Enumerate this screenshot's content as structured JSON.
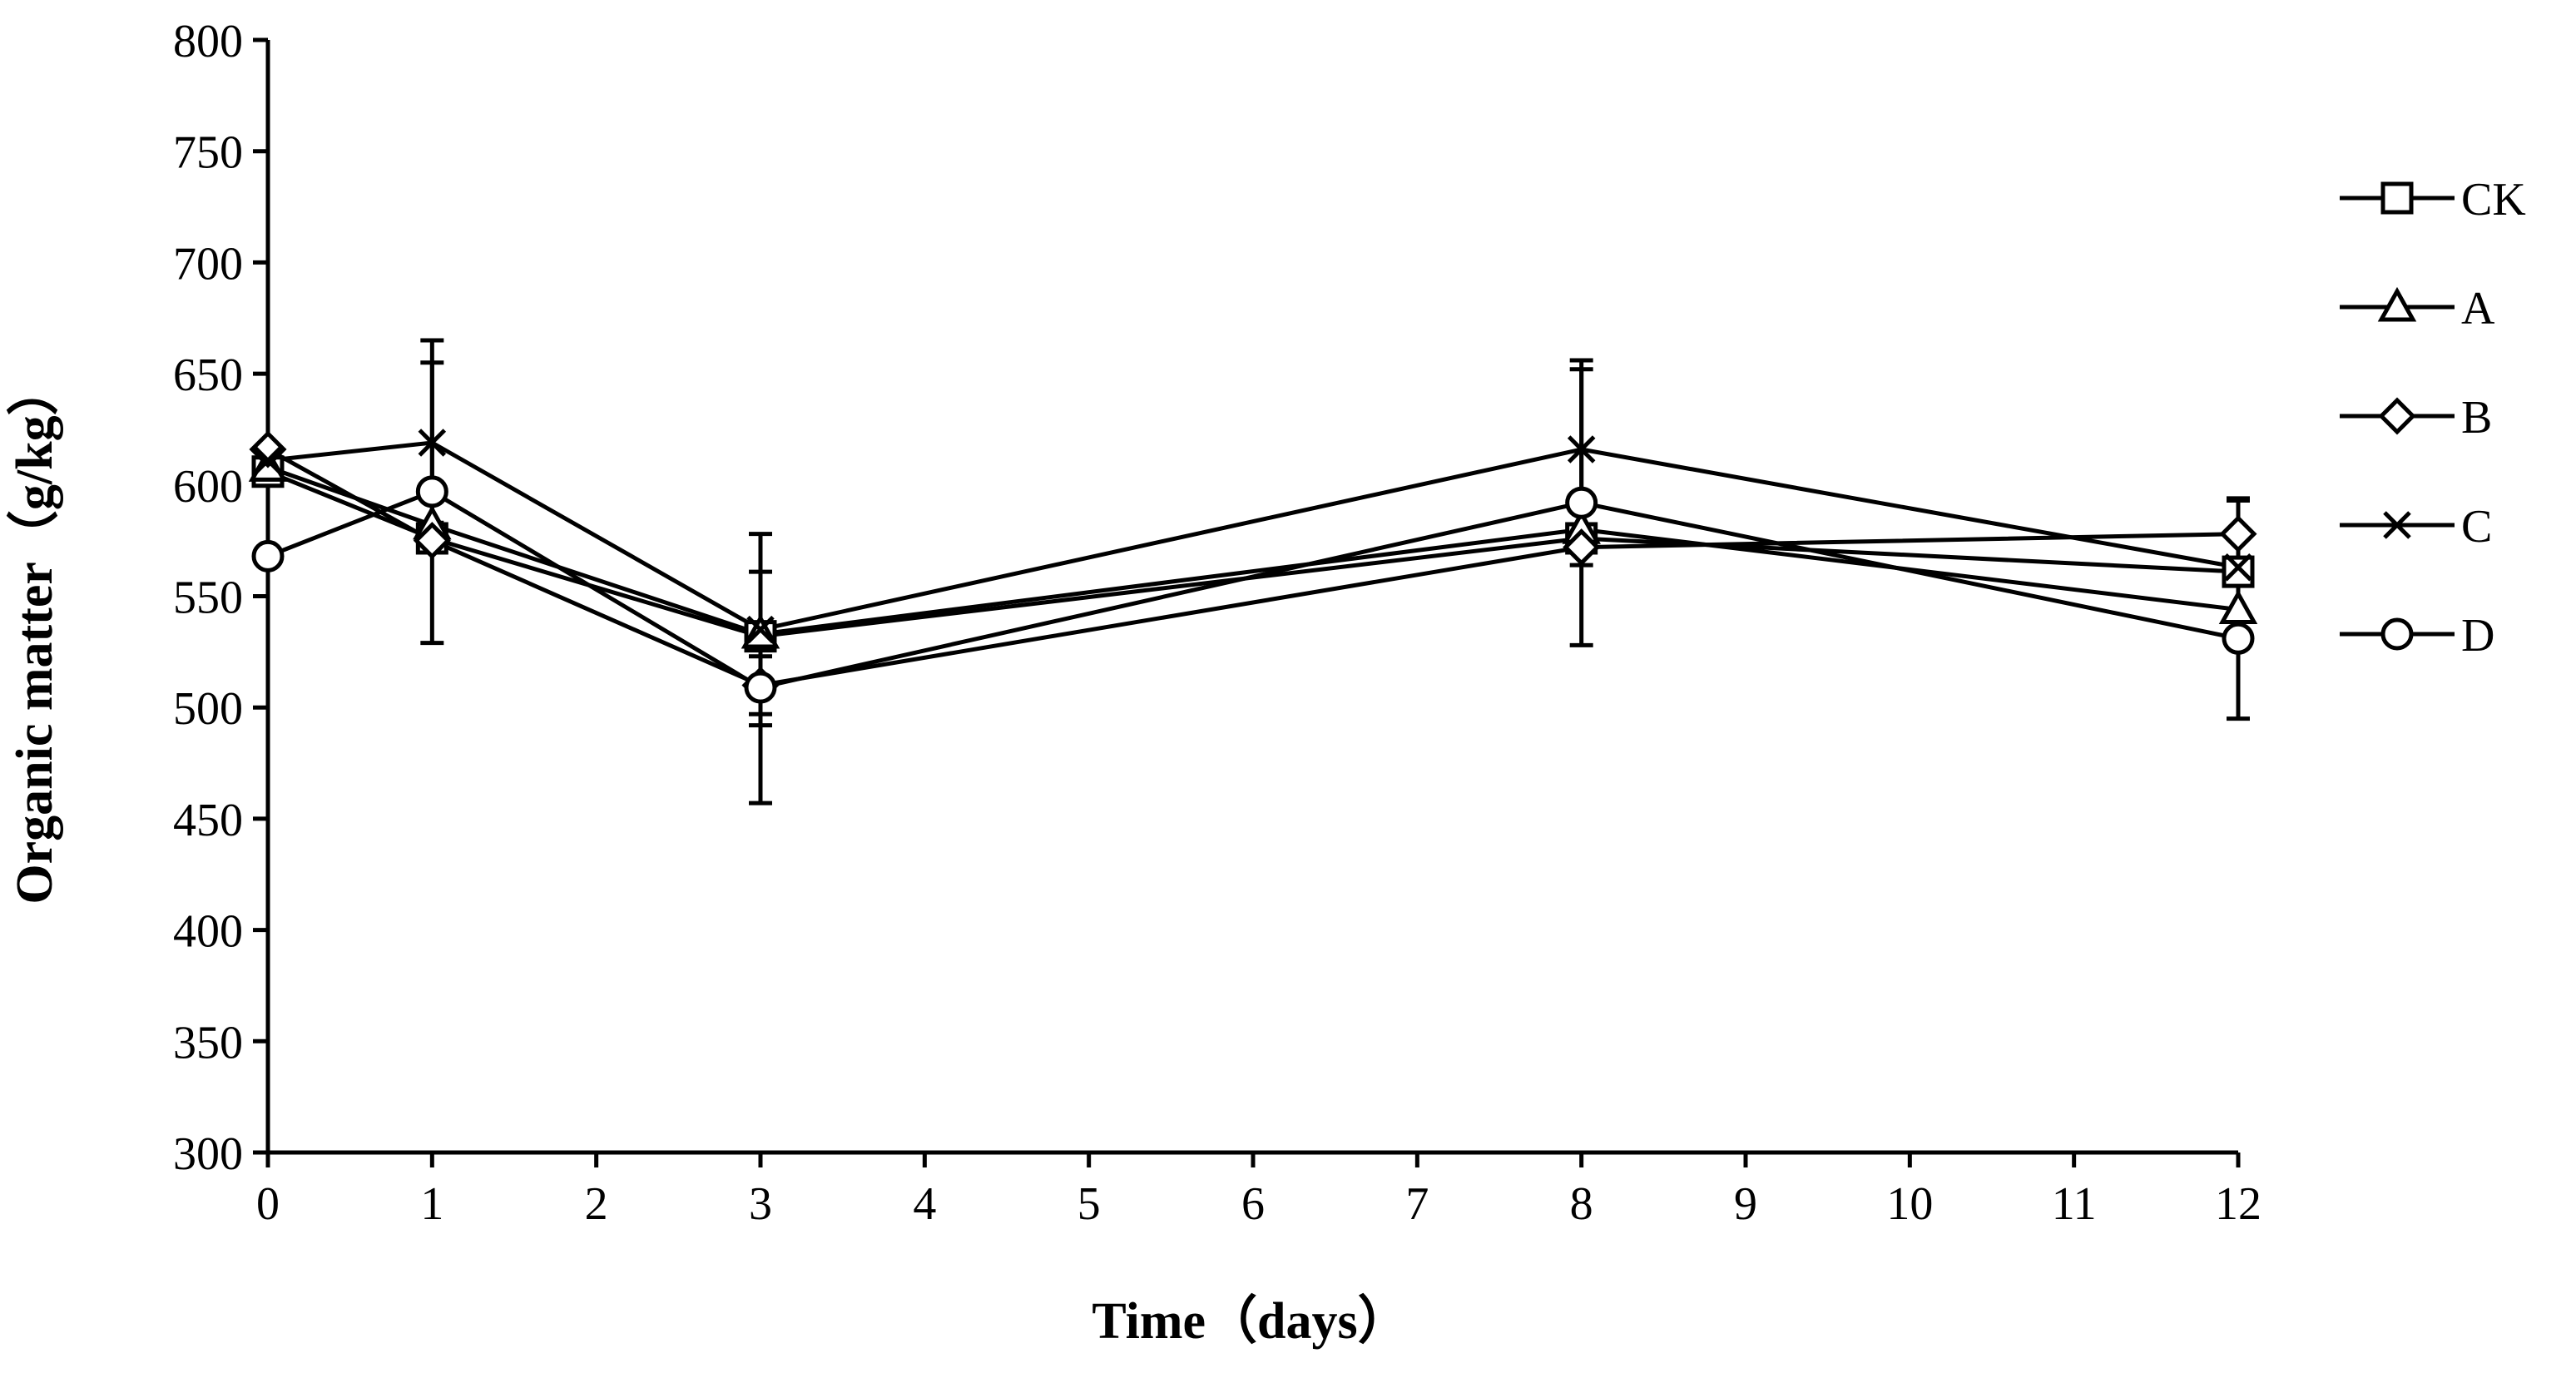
{
  "chart_data": {
    "type": "line",
    "title": "",
    "xlabel": "Time（days）",
    "ylabel": "Organic matter（g/kg）",
    "xlim": [
      0,
      12
    ],
    "ylim": [
      300,
      800
    ],
    "x_ticks": [
      0,
      1,
      2,
      3,
      4,
      5,
      6,
      7,
      8,
      9,
      10,
      11,
      12
    ],
    "x_tick_labels": [
      "0",
      "1",
      "2",
      "3",
      "4",
      "5",
      "6",
      "7",
      "8",
      "9",
      "10",
      "11",
      "12"
    ],
    "y_ticks": [
      300,
      350,
      400,
      450,
      500,
      550,
      600,
      650,
      700,
      750,
      800
    ],
    "y_tick_labels": [
      "300",
      "350",
      "400",
      "450",
      "500",
      "550",
      "600",
      "650",
      "700",
      "750",
      "800"
    ],
    "grid": false,
    "legend_position": "right",
    "x": [
      0,
      1,
      3,
      8,
      12
    ],
    "series": [
      {
        "name": "CK",
        "marker": "square",
        "values": [
          606,
          576,
          532,
          576,
          561
        ],
        "errors": [
          null,
          null,
          null,
          null,
          null
        ]
      },
      {
        "name": "A",
        "marker": "triangle",
        "values": [
          608,
          582,
          533,
          580,
          544
        ],
        "errors": [
          null,
          null,
          null,
          null,
          null
        ]
      },
      {
        "name": "B",
        "marker": "diamond",
        "values": [
          616,
          575,
          510,
          572,
          578
        ],
        "errors": [
          null,
          null,
          13,
          8,
          16
        ]
      },
      {
        "name": "C",
        "marker": "cross",
        "values": [
          611,
          619,
          535,
          616,
          563
        ],
        "errors": [
          null,
          36,
          43,
          36,
          30
        ]
      },
      {
        "name": "D",
        "marker": "circle",
        "values": [
          568,
          597,
          509,
          592,
          531
        ],
        "errors": [
          null,
          68,
          52,
          64,
          36
        ]
      }
    ]
  }
}
